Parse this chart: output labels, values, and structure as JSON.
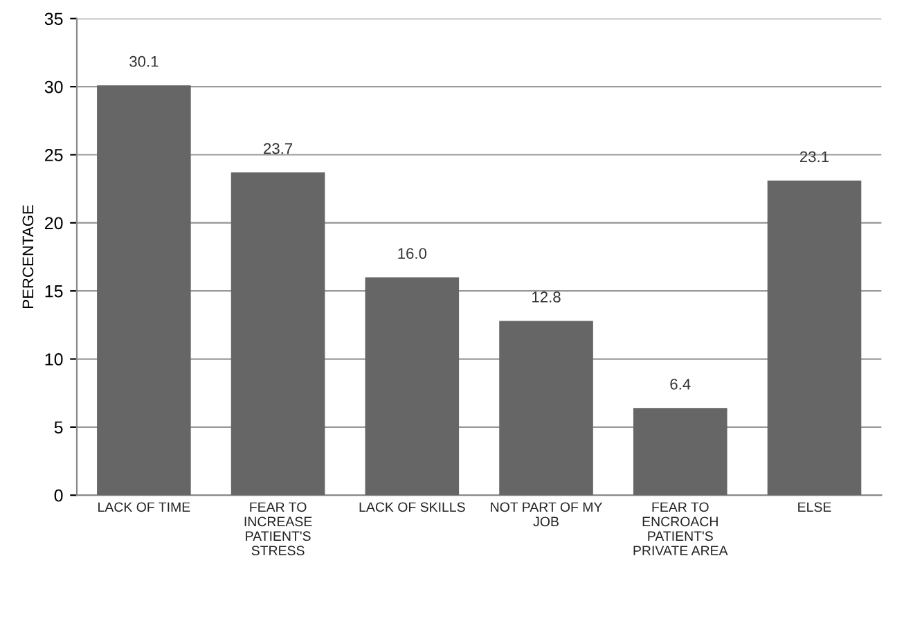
{
  "chart_data": {
    "type": "bar",
    "ylabel": "PERCENTAGE",
    "categories": [
      "LACK OF TIME",
      "FEAR TO\nINCREASE\nPATIENT'S\nSTRESS",
      "LACK OF SKILLS",
      "NOT PART OF MY\nJOB",
      "FEAR TO\nENCROACH\nPATIENT'S\nPRIVATE AREA",
      "ELSE"
    ],
    "values": [
      30.1,
      23.7,
      16.0,
      12.8,
      6.4,
      23.1
    ],
    "value_labels": [
      "30.1",
      "23.7",
      "16.0",
      "12.8",
      "6.4",
      "23.1"
    ],
    "color": "#666666",
    "ylim": [
      0,
      35
    ],
    "yticks": [
      0,
      5,
      10,
      15,
      20,
      25,
      30,
      35
    ],
    "grid": "y"
  }
}
